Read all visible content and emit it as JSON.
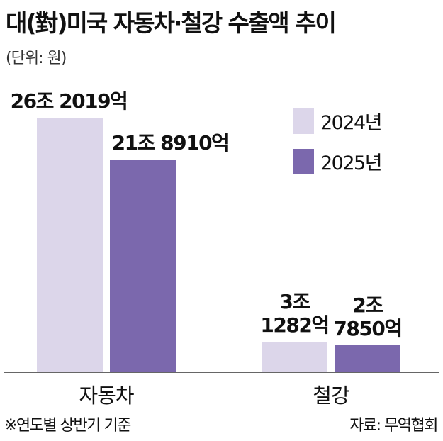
{
  "title": "대(對)미국 자동차·철강 수출액 추이",
  "unit_label": "(단위: 원)",
  "footnote": "※연도별 상반기 기준",
  "source": "자료: 무역협회",
  "colors": {
    "series_2024": "#dcd6ea",
    "series_2025": "#7b68ad",
    "axis": "#333333"
  },
  "chart_data": {
    "type": "bar",
    "categories": [
      "자동차",
      "철강"
    ],
    "series": [
      {
        "name": "2024년",
        "values": [
          262019,
          31282
        ],
        "labels": [
          [
            "26조 2019억"
          ],
          [
            "3조",
            "1282억"
          ]
        ]
      },
      {
        "name": "2025년",
        "values": [
          218910,
          27850
        ],
        "labels": [
          [
            "21조 8910억"
          ],
          [
            "2조",
            "7850억"
          ]
        ]
      }
    ],
    "unit": "억 원",
    "ylim": [
      0,
      262019
    ],
    "grid": false,
    "legend_position": "top-right"
  }
}
